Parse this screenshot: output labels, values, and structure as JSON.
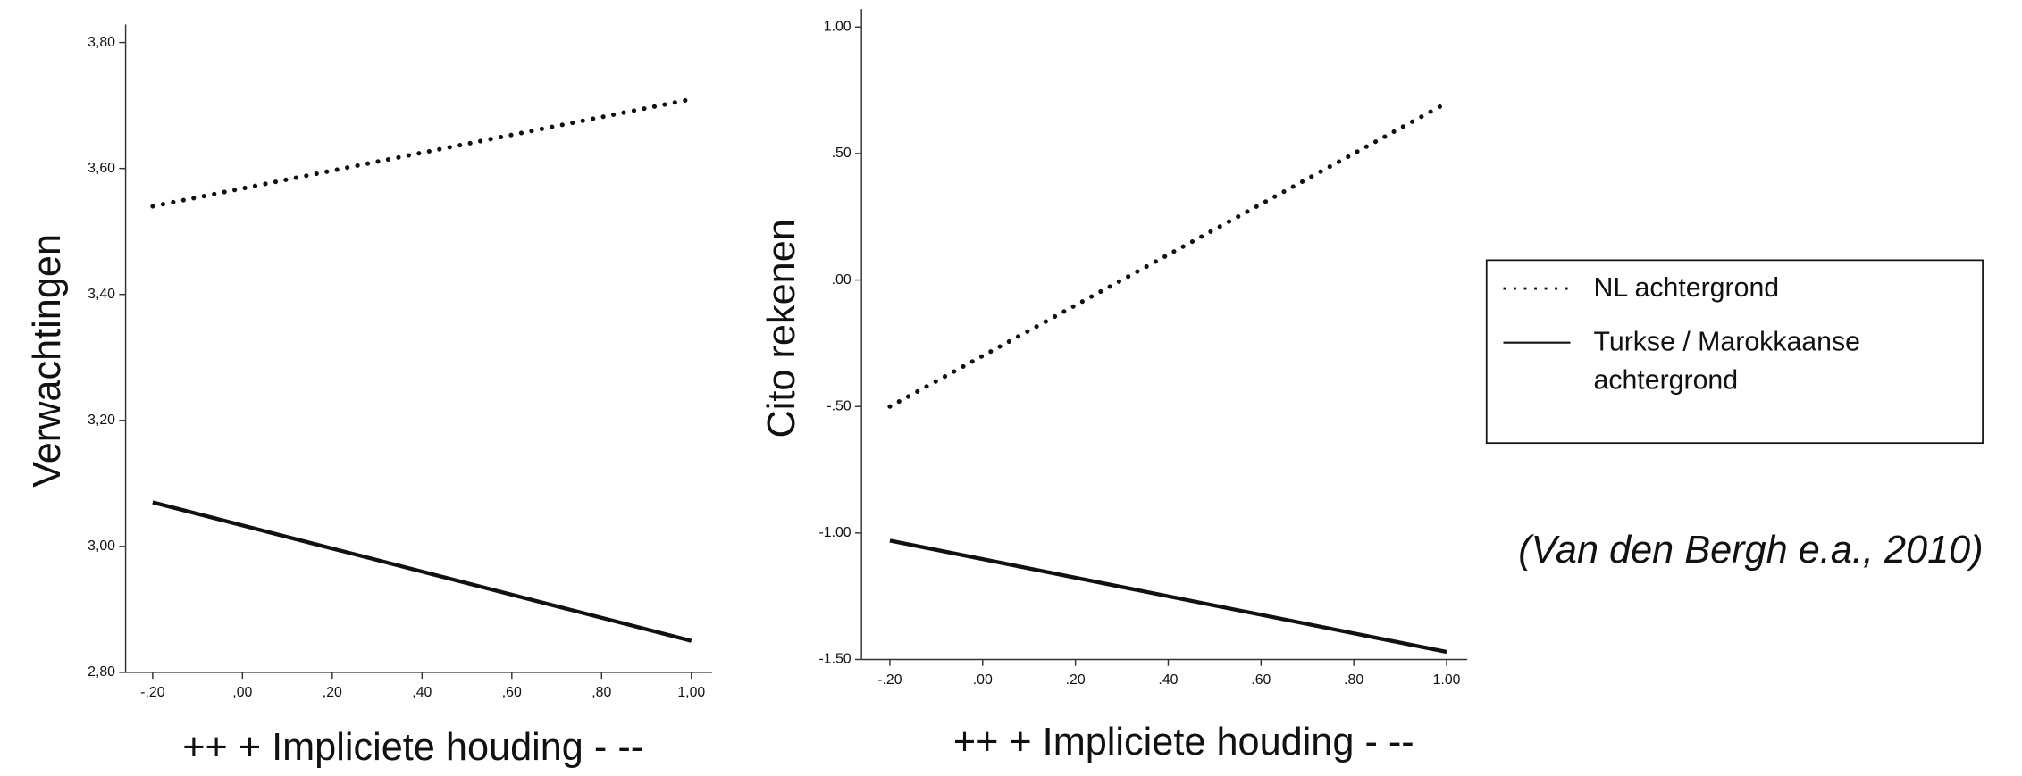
{
  "chart_data": [
    {
      "type": "line",
      "ylabel": "Verwachtingen",
      "xlabel": "++  + Impliciete houding -  --",
      "x": [
        -0.2,
        1.0
      ],
      "series": [
        {
          "name": "NL achtergrond",
          "color": "#111111",
          "style": "dotted",
          "values": [
            3.54,
            3.71
          ]
        },
        {
          "name": "Turkse / Marokkaanse achtergrond",
          "color": "#111111",
          "style": "solid",
          "values": [
            3.07,
            2.85
          ]
        }
      ],
      "xlim": [
        -0.2,
        1.0
      ],
      "xticks": [
        {
          "value": -0.2,
          "label": "-,20"
        },
        {
          "value": 0,
          "label": ",00"
        },
        {
          "value": 0.2,
          "label": ",20"
        },
        {
          "value": 0.4,
          "label": ",40"
        },
        {
          "value": 0.6,
          "label": ",60"
        },
        {
          "value": 0.8,
          "label": ",80"
        },
        {
          "value": 1.0,
          "label": "1,00"
        }
      ],
      "ylim": [
        2.8,
        3.8
      ],
      "yticks": [
        {
          "value": 2.8,
          "label": "2,80"
        },
        {
          "value": 3.0,
          "label": "3,00"
        },
        {
          "value": 3.2,
          "label": "3,20"
        },
        {
          "value": 3.4,
          "label": "3,40"
        },
        {
          "value": 3.6,
          "label": "3,60"
        },
        {
          "value": 3.8,
          "label": "3,80"
        }
      ]
    },
    {
      "type": "line",
      "ylabel": "Cito rekenen",
      "xlabel": "++  + Impliciete houding -  --",
      "x": [
        -0.2,
        1.0
      ],
      "series": [
        {
          "color": "#111111",
          "style": "dotted",
          "values": [
            -0.5,
            0.7
          ]
        },
        {
          "color": "#111111",
          "style": "solid",
          "values": [
            -1.03,
            -1.47
          ]
        }
      ],
      "xlim": [
        -0.2,
        1.0
      ],
      "xticks": [
        {
          "value": -0.2,
          "label": "-.20"
        },
        {
          "value": 0,
          "label": ".00"
        },
        {
          "value": 0.2,
          "label": ".20"
        },
        {
          "value": 0.4,
          "label": ".40"
        },
        {
          "value": 0.6,
          "label": ".60"
        },
        {
          "value": 0.8,
          "label": ".80"
        },
        {
          "value": 1.0,
          "label": "1.00"
        }
      ],
      "ylim": [
        -1.5,
        1.0
      ],
      "yticks": [
        {
          "value": -1.5,
          "label": "-1.50"
        },
        {
          "value": -1.0,
          "label": "-1.00"
        },
        {
          "value": -0.5,
          "label": "-.50"
        },
        {
          "value": 0,
          "label": ".00"
        },
        {
          "value": 0.5,
          "label": ".50"
        },
        {
          "value": 1.0,
          "label": "1.00"
        }
      ]
    }
  ],
  "citation": "(Van den Bergh e.a., 2010)"
}
